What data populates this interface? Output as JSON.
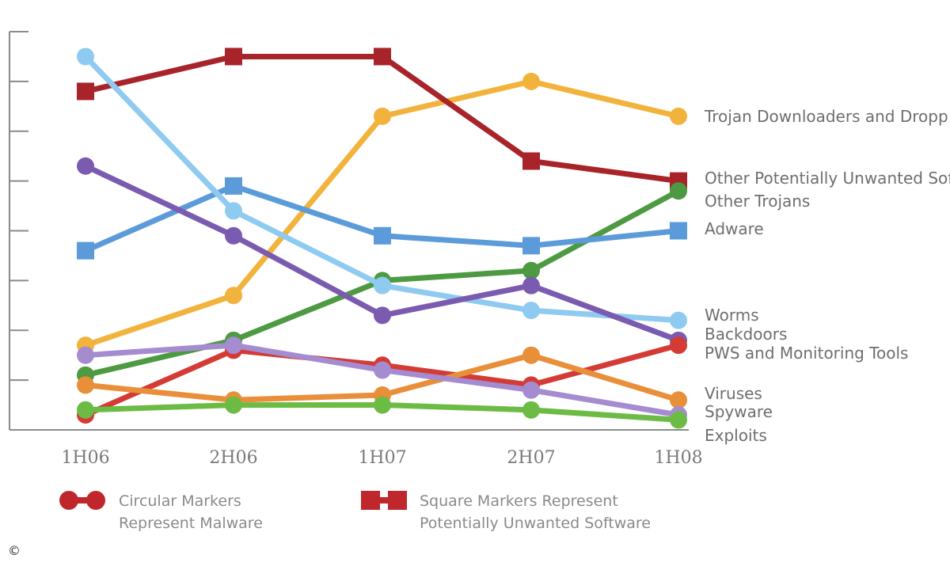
{
  "chart_data": {
    "type": "line",
    "categories": [
      "1H06",
      "2H06",
      "1H07",
      "2H07",
      "1H08"
    ],
    "series": [
      {
        "name": "Trojan Downloaders and Dropp",
        "marker": "circle",
        "color": "#f2b33d",
        "values": [
          17,
          27,
          63,
          70,
          63
        ]
      },
      {
        "name": "Other Potentially Unwanted Sof",
        "marker": "square",
        "color": "#a8242a",
        "values": [
          68,
          75,
          75,
          54,
          50
        ]
      },
      {
        "name": "Other Trojans",
        "marker": "circle",
        "color": "#4d9a43",
        "values": [
          11,
          18,
          30,
          32,
          48
        ]
      },
      {
        "name": "Adware",
        "marker": "square",
        "color": "#5b9bd9",
        "values": [
          36,
          49,
          39,
          37,
          40
        ]
      },
      {
        "name": "Worms",
        "marker": "circle",
        "color": "#8fcaf0",
        "values": [
          75,
          44,
          29,
          24,
          22
        ]
      },
      {
        "name": "Backdoors",
        "marker": "circle",
        "color": "#7b5bb0",
        "values": [
          53,
          39,
          23,
          29,
          18
        ]
      },
      {
        "name": "PWS and Monitoring Tools",
        "marker": "circle",
        "color": "#d43b35",
        "values": [
          3,
          16,
          13,
          9,
          17
        ]
      },
      {
        "name": "Viruses",
        "marker": "circle",
        "color": "#e98f3a",
        "values": [
          9,
          6,
          7,
          15,
          6
        ]
      },
      {
        "name": "Spyware",
        "marker": "circle",
        "color": "#a58bd0",
        "values": [
          15,
          17,
          12,
          8,
          3
        ]
      },
      {
        "name": "Exploits",
        "marker": "circle",
        "color": "#6cbb45",
        "values": [
          4,
          5,
          5,
          4,
          2
        ]
      }
    ],
    "labels_order": [
      "Trojan Downloaders and Dropp",
      "Other Potentially Unwanted Sof",
      "Other Trojans",
      "Adware",
      "Worms",
      "Backdoors",
      "PWS and Monitoring Tools",
      "Viruses",
      "Spyware",
      "Exploits"
    ],
    "ylim": [
      0,
      80
    ],
    "y_ticks": [
      10,
      20,
      30,
      40,
      50,
      60,
      70,
      80
    ],
    "grid": false,
    "legend": {
      "circle_text_1": "Circular Markers",
      "circle_text_2": "Represent Malware",
      "square_text_1": "Square Markers Represent",
      "square_text_2": "Potentially Unwanted Software",
      "color": "#c0272d"
    }
  },
  "copyright": "©"
}
